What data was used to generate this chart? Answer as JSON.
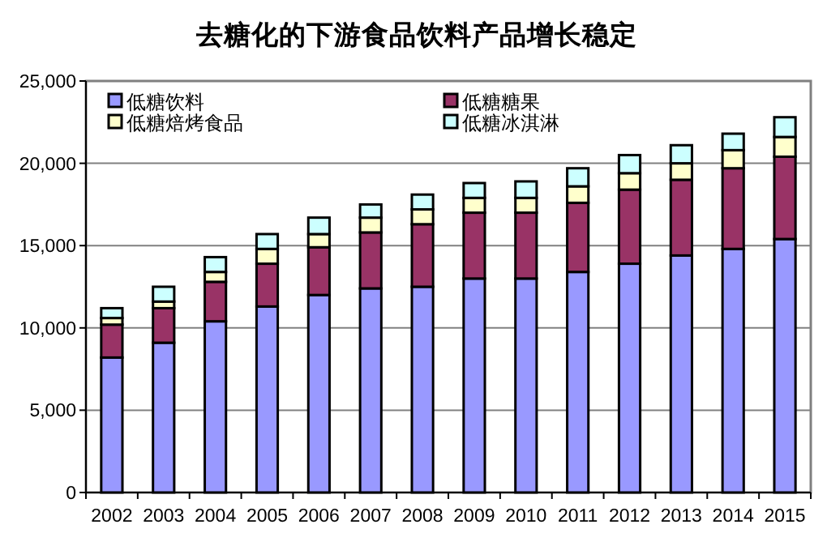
{
  "chart_data": {
    "type": "bar",
    "stacked": true,
    "title": "去糖化的下游食品饮料产品增长稳定",
    "categories": [
      "2002",
      "2003",
      "2004",
      "2005",
      "2006",
      "2007",
      "2008",
      "2009",
      "2010",
      "2011",
      "2012",
      "2013",
      "2014",
      "2015"
    ],
    "series": [
      {
        "name": "低糖饮料",
        "color": "#9999ff",
        "values": [
          8200,
          9100,
          10400,
          11300,
          12000,
          12400,
          12500,
          13000,
          13000,
          13400,
          13900,
          14400,
          14800,
          15400
        ]
      },
      {
        "name": "低糖糖果",
        "color": "#993366",
        "values": [
          2000,
          2100,
          2400,
          2600,
          2900,
          3400,
          3800,
          4000,
          4000,
          4200,
          4500,
          4600,
          4900,
          5000
        ]
      },
      {
        "name": "低糖焙烤食品",
        "color": "#ffffcc",
        "values": [
          400,
          400,
          600,
          900,
          800,
          900,
          900,
          900,
          900,
          1000,
          1000,
          1000,
          1100,
          1200
        ]
      },
      {
        "name": "低糖冰淇淋",
        "color": "#ccffff",
        "values": [
          600,
          900,
          900,
          900,
          1000,
          800,
          900,
          900,
          1000,
          1100,
          1100,
          1100,
          1000,
          1200
        ]
      }
    ],
    "ylim": [
      0,
      25000
    ],
    "yticks": [
      0,
      {
        "value": 5000,
        "label": "5,000"
      },
      {
        "value": 10000,
        "label": "10,000"
      },
      {
        "value": 15000,
        "label": "15,000"
      },
      {
        "value": 20000,
        "label": "20,000"
      },
      {
        "value": 25000,
        "label": "25,000"
      }
    ],
    "grid": "y",
    "legend": "top"
  }
}
